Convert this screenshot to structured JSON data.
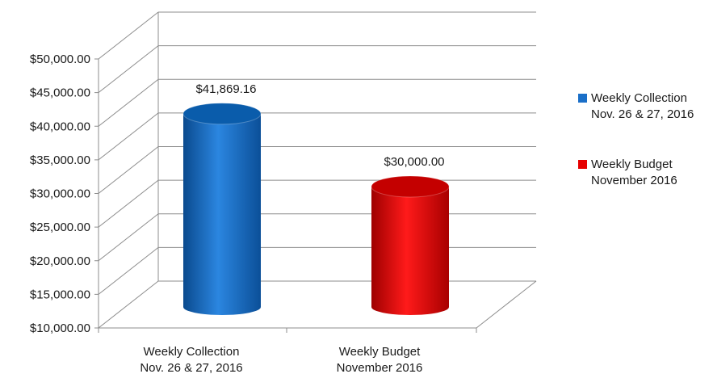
{
  "chart_data": {
    "type": "bar",
    "style": "3d-cylinder",
    "categories": [
      "Weekly Collection\nNov. 26 & 27, 2016",
      "Weekly Budget\nNovember 2016"
    ],
    "values": [
      41869.16,
      30000.0
    ],
    "value_labels": [
      "$41,869.16",
      "$30,000.00"
    ],
    "colors": [
      "#1a6fc8",
      "#e60000"
    ],
    "ylim": [
      10000,
      50000
    ],
    "ytick_step": 5000,
    "ytick_labels": [
      "$10,000.00",
      "$15,000.00",
      "$20,000.00",
      "$25,000.00",
      "$30,000.00",
      "$35,000.00",
      "$40,000.00",
      "$45,000.00",
      "$50,000.00"
    ],
    "grid": true,
    "legend_position": "right",
    "legend": [
      {
        "label": "Weekly Collection\nNov. 26 & 27, 2016",
        "color": "#1a6fc8"
      },
      {
        "label": "Weekly Budget\nNovember 2016",
        "color": "#e60000"
      }
    ]
  }
}
